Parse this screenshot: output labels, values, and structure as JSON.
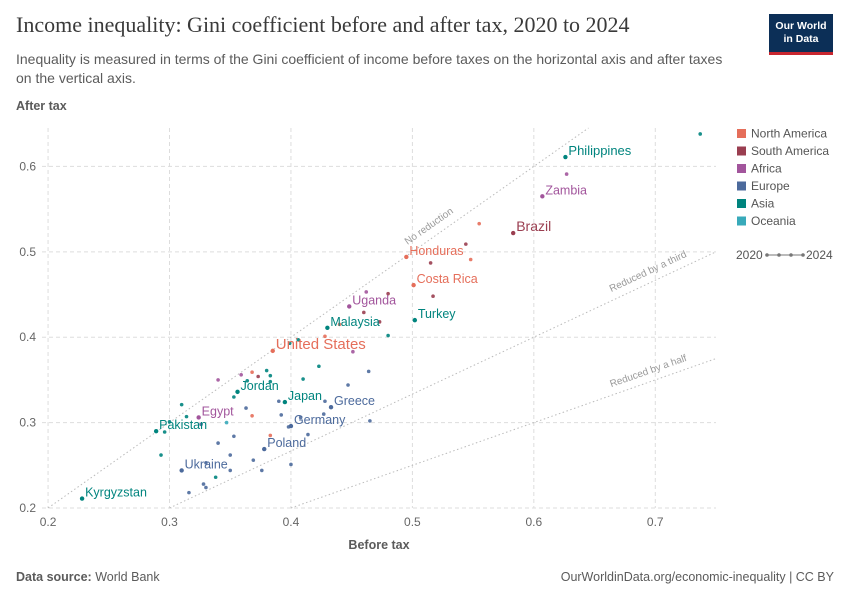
{
  "header": {
    "title": "Income inequality: Gini coefficient before and after tax, 2020 to 2024",
    "subtitle": "Inequality is measured in terms of the Gini coefficient of income before taxes on the horizontal axis and after taxes on the vertical axis.",
    "logo_line1": "Our World",
    "logo_line2": "in Data"
  },
  "footer": {
    "source_label": "Data source:",
    "source_value": "World Bank",
    "link": "OurWorldinData.org/economic-inequality | CC BY"
  },
  "chart_data": {
    "type": "scatter",
    "title": "Income inequality: Gini coefficient before and after tax, 2020 to 2024",
    "xlabel": "Before tax",
    "ylabel": "After tax",
    "xlim": [
      0.195,
      0.75
    ],
    "ylim": [
      0.2,
      0.645
    ],
    "x_ticks": [
      "0.2",
      "0.3",
      "0.4",
      "0.5",
      "0.6",
      "0.7"
    ],
    "y_ticks": [
      "0.2",
      "0.3",
      "0.4",
      "0.5",
      "0.6"
    ],
    "grid": true,
    "legend_position": "right",
    "legend": [
      {
        "name": "North America",
        "color": "#e56e5a"
      },
      {
        "name": "South America",
        "color": "#9a3e50"
      },
      {
        "name": "Africa",
        "color": "#a2559c"
      },
      {
        "name": "Europe",
        "color": "#4c6a9c"
      },
      {
        "name": "Asia",
        "color": "#00847e"
      },
      {
        "name": "Oceania",
        "color": "#38aaba"
      }
    ],
    "time_legend": {
      "start": "2020",
      "end": "2024"
    },
    "reference_lines": [
      {
        "label": "No reduction",
        "slope": 1.0
      },
      {
        "label": "Reduced by a third",
        "slope": 0.6667
      },
      {
        "label": "Reduced by a half",
        "slope": 0.5
      }
    ],
    "labeled_countries": [
      {
        "name": "Philippines",
        "region": "Asia",
        "x": 0.626,
        "y": 0.611
      },
      {
        "name": "Zambia",
        "region": "Africa",
        "x": 0.607,
        "y": 0.565
      },
      {
        "name": "Brazil",
        "region": "South America",
        "x": 0.583,
        "y": 0.522
      },
      {
        "name": "Honduras",
        "region": "North America",
        "x": 0.495,
        "y": 0.494
      },
      {
        "name": "Costa Rica",
        "region": "North America",
        "x": 0.501,
        "y": 0.461
      },
      {
        "name": "Uganda",
        "region": "Africa",
        "x": 0.448,
        "y": 0.436
      },
      {
        "name": "Turkey",
        "region": "Asia",
        "x": 0.502,
        "y": 0.42
      },
      {
        "name": "Malaysia",
        "region": "Asia",
        "x": 0.43,
        "y": 0.411
      },
      {
        "name": "United States",
        "region": "North America",
        "x": 0.385,
        "y": 0.384
      },
      {
        "name": "Jordan",
        "region": "Asia",
        "x": 0.356,
        "y": 0.336
      },
      {
        "name": "Japan",
        "region": "Asia",
        "x": 0.395,
        "y": 0.324
      },
      {
        "name": "Greece",
        "region": "Europe",
        "x": 0.433,
        "y": 0.318
      },
      {
        "name": "Egypt",
        "region": "Africa",
        "x": 0.324,
        "y": 0.306
      },
      {
        "name": "Germany",
        "region": "Europe",
        "x": 0.4,
        "y": 0.296
      },
      {
        "name": "Pakistan",
        "region": "Asia",
        "x": 0.289,
        "y": 0.29
      },
      {
        "name": "Poland",
        "region": "Europe",
        "x": 0.378,
        "y": 0.269
      },
      {
        "name": "Ukraine",
        "region": "Europe",
        "x": 0.31,
        "y": 0.244
      },
      {
        "name": "Kyrgyzstan",
        "region": "Asia",
        "x": 0.228,
        "y": 0.211
      }
    ],
    "other_points": [
      {
        "region": "Asia",
        "x": 0.737,
        "y": 0.638
      },
      {
        "region": "Africa",
        "x": 0.627,
        "y": 0.591
      },
      {
        "region": "North America",
        "x": 0.555,
        "y": 0.533
      },
      {
        "region": "South America",
        "x": 0.544,
        "y": 0.509
      },
      {
        "region": "North America",
        "x": 0.548,
        "y": 0.491
      },
      {
        "region": "South America",
        "x": 0.515,
        "y": 0.487
      },
      {
        "region": "Africa",
        "x": 0.462,
        "y": 0.453
      },
      {
        "region": "South America",
        "x": 0.48,
        "y": 0.451
      },
      {
        "region": "South America",
        "x": 0.517,
        "y": 0.448
      },
      {
        "region": "South America",
        "x": 0.46,
        "y": 0.429
      },
      {
        "region": "North America",
        "x": 0.44,
        "y": 0.415
      },
      {
        "region": "South America",
        "x": 0.473,
        "y": 0.418
      },
      {
        "region": "North America",
        "x": 0.428,
        "y": 0.401
      },
      {
        "region": "Asia",
        "x": 0.406,
        "y": 0.397
      },
      {
        "region": "Asia",
        "x": 0.399,
        "y": 0.393
      },
      {
        "region": "Asia",
        "x": 0.48,
        "y": 0.402
      },
      {
        "region": "Africa",
        "x": 0.451,
        "y": 0.383
      },
      {
        "region": "Asia",
        "x": 0.423,
        "y": 0.366
      },
      {
        "region": "Europe",
        "x": 0.464,
        "y": 0.36
      },
      {
        "region": "Asia",
        "x": 0.38,
        "y": 0.361
      },
      {
        "region": "Asia",
        "x": 0.383,
        "y": 0.355
      },
      {
        "region": "Asia",
        "x": 0.364,
        "y": 0.349
      },
      {
        "region": "North America",
        "x": 0.368,
        "y": 0.359
      },
      {
        "region": "South America",
        "x": 0.373,
        "y": 0.354
      },
      {
        "region": "Africa",
        "x": 0.359,
        "y": 0.356
      },
      {
        "region": "Asia",
        "x": 0.383,
        "y": 0.348
      },
      {
        "region": "Africa",
        "x": 0.34,
        "y": 0.35
      },
      {
        "region": "Asia",
        "x": 0.41,
        "y": 0.351
      },
      {
        "region": "Europe",
        "x": 0.447,
        "y": 0.344
      },
      {
        "region": "Europe",
        "x": 0.39,
        "y": 0.325
      },
      {
        "region": "Europe",
        "x": 0.428,
        "y": 0.325
      },
      {
        "region": "Asia",
        "x": 0.31,
        "y": 0.321
      },
      {
        "region": "Asia",
        "x": 0.353,
        "y": 0.33
      },
      {
        "region": "Asia",
        "x": 0.314,
        "y": 0.307
      },
      {
        "region": "Europe",
        "x": 0.363,
        "y": 0.317
      },
      {
        "region": "Europe",
        "x": 0.392,
        "y": 0.309
      },
      {
        "region": "Europe",
        "x": 0.408,
        "y": 0.306
      },
      {
        "region": "Europe",
        "x": 0.427,
        "y": 0.31
      },
      {
        "region": "Europe",
        "x": 0.465,
        "y": 0.302
      },
      {
        "region": "North America",
        "x": 0.368,
        "y": 0.308
      },
      {
        "region": "Oceania",
        "x": 0.347,
        "y": 0.3
      },
      {
        "region": "Europe",
        "x": 0.414,
        "y": 0.286
      },
      {
        "region": "Europe",
        "x": 0.353,
        "y": 0.284
      },
      {
        "region": "Europe",
        "x": 0.398,
        "y": 0.295
      },
      {
        "region": "Asia",
        "x": 0.296,
        "y": 0.289
      },
      {
        "region": "Asia",
        "x": 0.3,
        "y": 0.301
      },
      {
        "region": "Europe",
        "x": 0.326,
        "y": 0.298
      },
      {
        "region": "North America",
        "x": 0.383,
        "y": 0.285
      },
      {
        "region": "Europe",
        "x": 0.34,
        "y": 0.276
      },
      {
        "region": "Europe",
        "x": 0.35,
        "y": 0.262
      },
      {
        "region": "Europe",
        "x": 0.4,
        "y": 0.251
      },
      {
        "region": "Europe",
        "x": 0.369,
        "y": 0.256
      },
      {
        "region": "Europe",
        "x": 0.33,
        "y": 0.253
      },
      {
        "region": "Europe",
        "x": 0.35,
        "y": 0.244
      },
      {
        "region": "Europe",
        "x": 0.376,
        "y": 0.244
      },
      {
        "region": "Asia",
        "x": 0.338,
        "y": 0.236
      },
      {
        "region": "Europe",
        "x": 0.328,
        "y": 0.228
      },
      {
        "region": "Europe",
        "x": 0.316,
        "y": 0.218
      },
      {
        "region": "Europe",
        "x": 0.33,
        "y": 0.224
      },
      {
        "region": "Asia",
        "x": 0.293,
        "y": 0.262
      }
    ]
  }
}
